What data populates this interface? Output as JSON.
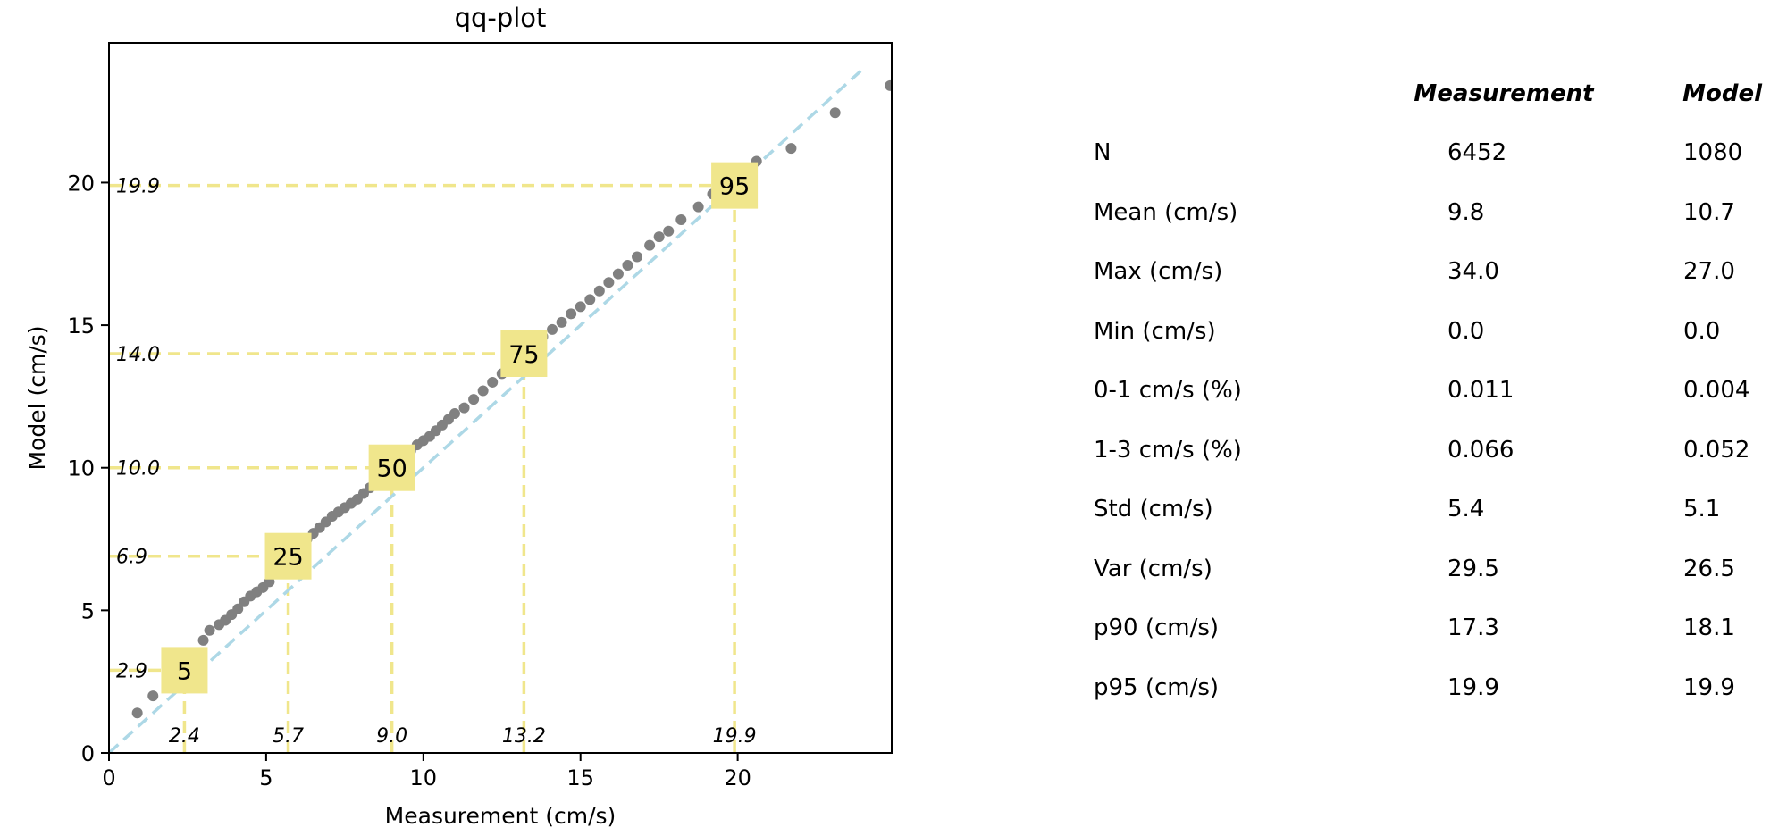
{
  "chart_data": {
    "type": "scatter",
    "title": "qq-plot",
    "xlabel": "Measurement (cm/s)",
    "ylabel": "Model (cm/s)",
    "xlim": [
      0,
      24.9
    ],
    "ylim": [
      0,
      24.9
    ],
    "xticks": [
      0,
      5,
      10,
      15,
      20
    ],
    "yticks": [
      0,
      5,
      10,
      15,
      20
    ],
    "grid": false,
    "colors": {
      "points": "#808080",
      "diagonal": "#add8e6",
      "percentile": "#f0e68c"
    },
    "diagonal": [
      [
        0,
        0
      ],
      [
        24,
        24
      ]
    ],
    "points": [
      [
        0.9,
        1.4
      ],
      [
        1.4,
        2.0
      ],
      [
        3.0,
        3.95
      ],
      [
        3.2,
        4.3
      ],
      [
        3.5,
        4.5
      ],
      [
        3.7,
        4.65
      ],
      [
        3.9,
        4.85
      ],
      [
        4.1,
        5.05
      ],
      [
        4.3,
        5.3
      ],
      [
        4.5,
        5.5
      ],
      [
        4.7,
        5.65
      ],
      [
        4.9,
        5.8
      ],
      [
        5.1,
        6.0
      ],
      [
        5.3,
        6.3
      ],
      [
        5.5,
        6.6
      ],
      [
        5.7,
        6.9
      ],
      [
        5.9,
        7.1
      ],
      [
        6.1,
        7.3
      ],
      [
        6.3,
        7.5
      ],
      [
        6.5,
        7.7
      ],
      [
        6.7,
        7.9
      ],
      [
        6.9,
        8.1
      ],
      [
        7.1,
        8.3
      ],
      [
        7.3,
        8.45
      ],
      [
        7.5,
        8.6
      ],
      [
        7.7,
        8.75
      ],
      [
        7.9,
        8.9
      ],
      [
        8.1,
        9.1
      ],
      [
        8.3,
        9.3
      ],
      [
        8.5,
        9.5
      ],
      [
        8.7,
        9.7
      ],
      [
        9.0,
        10.0
      ],
      [
        9.2,
        10.2
      ],
      [
        9.4,
        10.4
      ],
      [
        9.6,
        10.6
      ],
      [
        9.8,
        10.8
      ],
      [
        10.0,
        10.95
      ],
      [
        10.2,
        11.1
      ],
      [
        10.4,
        11.3
      ],
      [
        10.6,
        11.5
      ],
      [
        10.8,
        11.7
      ],
      [
        11.0,
        11.9
      ],
      [
        11.3,
        12.1
      ],
      [
        11.6,
        12.4
      ],
      [
        11.9,
        12.7
      ],
      [
        12.2,
        13.0
      ],
      [
        12.5,
        13.3
      ],
      [
        12.8,
        13.6
      ],
      [
        13.2,
        14.0
      ],
      [
        13.5,
        14.3
      ],
      [
        13.8,
        14.6
      ],
      [
        14.1,
        14.85
      ],
      [
        14.4,
        15.1
      ],
      [
        14.7,
        15.4
      ],
      [
        15.0,
        15.65
      ],
      [
        15.3,
        15.9
      ],
      [
        15.6,
        16.2
      ],
      [
        15.9,
        16.5
      ],
      [
        16.2,
        16.8
      ],
      [
        16.5,
        17.1
      ],
      [
        16.8,
        17.4
      ],
      [
        17.2,
        17.8
      ],
      [
        17.5,
        18.1
      ],
      [
        17.8,
        18.3
      ],
      [
        18.2,
        18.7
      ],
      [
        18.75,
        19.15
      ],
      [
        19.2,
        19.6
      ],
      [
        19.9,
        19.9
      ],
      [
        20.6,
        20.75
      ],
      [
        21.7,
        21.2
      ],
      [
        23.1,
        22.45
      ],
      [
        24.85,
        23.4
      ]
    ],
    "percentiles": [
      {
        "label": "5",
        "x": 2.4,
        "y": 2.9,
        "x_text": "2.4",
        "y_text": "2.9"
      },
      {
        "label": "25",
        "x": 5.7,
        "y": 6.9,
        "x_text": "5.7",
        "y_text": "6.9"
      },
      {
        "label": "50",
        "x": 9.0,
        "y": 10.0,
        "x_text": "9.0",
        "y_text": "10.0"
      },
      {
        "label": "75",
        "x": 13.2,
        "y": 14.0,
        "x_text": "13.2",
        "y_text": "14.0"
      },
      {
        "label": "95",
        "x": 19.9,
        "y": 19.9,
        "x_text": "19.9",
        "y_text": "19.9"
      }
    ]
  },
  "table": {
    "columns": [
      "Measurement",
      "Model"
    ],
    "rows": [
      {
        "label": "N",
        "values": [
          "6452",
          "1080"
        ]
      },
      {
        "label": "Mean (cm/s)",
        "values": [
          "9.8",
          "10.7"
        ]
      },
      {
        "label": "Max (cm/s)",
        "values": [
          "34.0",
          "27.0"
        ]
      },
      {
        "label": "Min (cm/s)",
        "values": [
          "0.0",
          "0.0"
        ]
      },
      {
        "label": "0-1 cm/s (%)",
        "values": [
          "0.011",
          "0.004"
        ]
      },
      {
        "label": "1-3 cm/s (%)",
        "values": [
          "0.066",
          "0.052"
        ]
      },
      {
        "label": "Std (cm/s)",
        "values": [
          "5.4",
          "5.1"
        ]
      },
      {
        "label": "Var (cm/s)",
        "values": [
          "29.5",
          "26.5"
        ]
      },
      {
        "label": "p90 (cm/s)",
        "values": [
          "17.3",
          "18.1"
        ]
      },
      {
        "label": "p95 (cm/s)",
        "values": [
          "19.9",
          "19.9"
        ]
      }
    ]
  }
}
